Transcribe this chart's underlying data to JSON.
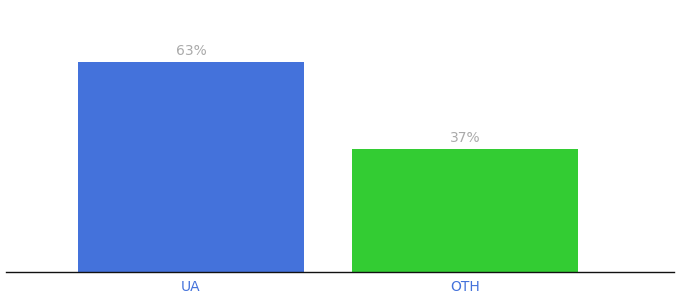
{
  "categories": [
    "UA",
    "OTH"
  ],
  "values": [
    63,
    37
  ],
  "bar_colors": [
    "#4472db",
    "#33cc33"
  ],
  "label_format": [
    "63%",
    "37%"
  ],
  "label_color": "#aaaaaa",
  "xlabel_color": "#4472db",
  "background_color": "#ffffff",
  "ylim": [
    0,
    80
  ],
  "bar_width": 0.28,
  "figsize": [
    6.8,
    3.0
  ],
  "dpi": 100,
  "label_fontsize": 10,
  "tick_fontsize": 10
}
